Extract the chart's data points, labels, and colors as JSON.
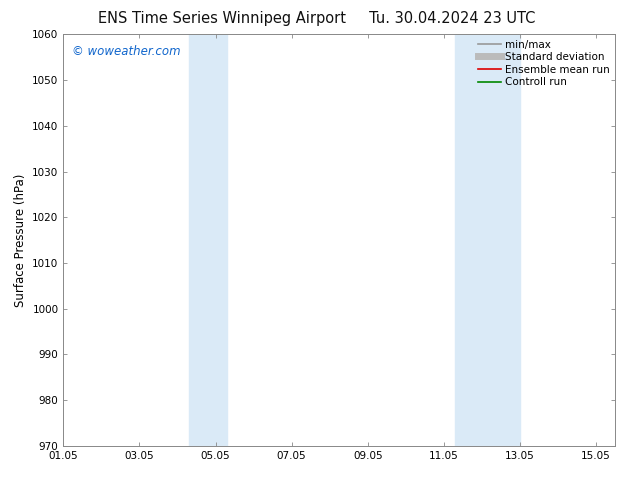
{
  "title": "ENS Time Series Winnipeg Airport     Tu. 30.04.2024 23 UTC",
  "ylabel": "Surface Pressure (hPa)",
  "ylim": [
    970,
    1060
  ],
  "yticks": [
    970,
    980,
    990,
    1000,
    1010,
    1020,
    1030,
    1040,
    1050,
    1060
  ],
  "xlim_start": 1.0,
  "xlim_end": 15.5,
  "xtick_positions": [
    1,
    3,
    5,
    7,
    9,
    11,
    13,
    15
  ],
  "xtick_labels": [
    "01.05",
    "03.05",
    "05.05",
    "07.05",
    "09.05",
    "11.05",
    "13.05",
    "15.05"
  ],
  "shade_bands": [
    {
      "xmin": 4.3,
      "xmax": 5.3
    },
    {
      "xmin": 11.3,
      "xmax": 13.0
    }
  ],
  "shade_color": "#daeaf7",
  "watermark_text": "© woweather.com",
  "watermark_color": "#1166cc",
  "legend_entries": [
    {
      "label": "min/max",
      "color": "#999999",
      "lw": 1.2
    },
    {
      "label": "Standard deviation",
      "color": "#bbbbbb",
      "lw": 5
    },
    {
      "label": "Ensemble mean run",
      "color": "#dd0000",
      "lw": 1.2
    },
    {
      "label": "Controll run",
      "color": "#008800",
      "lw": 1.2
    }
  ],
  "bg_color": "#ffffff",
  "spine_color": "#888888",
  "title_fontsize": 10.5,
  "tick_fontsize": 7.5,
  "ylabel_fontsize": 8.5,
  "watermark_fontsize": 8.5,
  "legend_fontsize": 7.5
}
